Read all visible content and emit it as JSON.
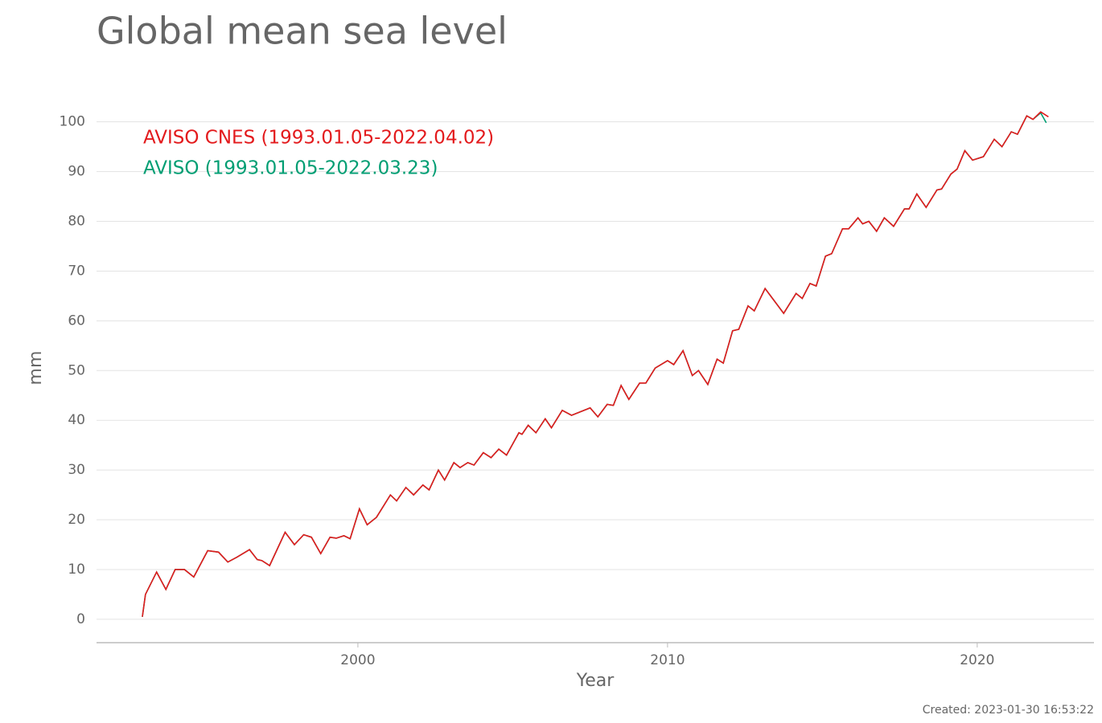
{
  "chart_data": {
    "type": "line",
    "title": "Global mean sea level",
    "x_label": "Year",
    "y_label": "mm",
    "note": "Created: 2023-01-30 16:53:22",
    "xlim": [
      1991.56,
      2023.77
    ],
    "ylim": [
      -4.7,
      103.5
    ],
    "xticks": [
      2000,
      2010,
      2020
    ],
    "yticks": [
      0,
      10,
      20,
      30,
      40,
      50,
      60,
      70,
      80,
      90,
      100
    ],
    "grid": true,
    "legend": "upper left",
    "series": [
      {
        "name": "AVISO (1993.01.05-2022.03.23)",
        "color": "#009e73",
        "x": [
          1993.04,
          1993.14,
          1993.5,
          1993.8,
          1994.1,
          1994.4,
          1994.7,
          1995.15,
          1995.5,
          1995.8,
          1996.1,
          1996.5,
          1996.75,
          1996.9,
          1997.15,
          1997.65,
          1997.95,
          1998.25,
          1998.5,
          1998.8,
          1999.1,
          1999.3,
          1999.55,
          1999.75,
          2000.05,
          2000.3,
          2000.6,
          2001.05,
          2001.25,
          2001.55,
          2001.8,
          2002.1,
          2002.3,
          2002.6,
          2002.8,
          2003.1,
          2003.3,
          2003.55,
          2003.75,
          2004.05,
          2004.3,
          2004.55,
          2004.8,
          2005.2,
          2005.3,
          2005.5,
          2005.75,
          2006.05,
          2006.25,
          2006.6,
          2006.9,
          2007.5,
          2007.75,
          2008.05,
          2008.25,
          2008.5,
          2008.75,
          2009.1,
          2009.3,
          2009.6,
          2010.0,
          2010.2,
          2010.5,
          2010.8,
          2011.0,
          2011.3,
          2011.6,
          2011.8,
          2012.1,
          2012.3,
          2012.6,
          2012.8,
          2013.15,
          2013.45,
          2013.75,
          2014.15,
          2014.35,
          2014.6,
          2014.8,
          2015.1,
          2015.3,
          2015.65,
          2015.85,
          2016.15,
          2016.3,
          2016.5,
          2016.75,
          2017.0,
          2017.3,
          2017.65,
          2017.8,
          2018.05,
          2018.35,
          2018.7,
          2018.85,
          2019.15,
          2019.35,
          2019.6,
          2019.85,
          2020.2,
          2020.55,
          2020.8,
          2021.1,
          2021.3,
          2021.6,
          2021.8,
          2022.05,
          2022.23
        ],
        "values": [
          0.5,
          5,
          9.5,
          6,
          10,
          10,
          8.5,
          13.8,
          13.5,
          11.5,
          12.5,
          14,
          12,
          11.8,
          10.8,
          17.5,
          15,
          17,
          16.5,
          13.2,
          16.5,
          16.3,
          16.8,
          16.2,
          22.2,
          19,
          20.5,
          25,
          23.8,
          26.5,
          25,
          27,
          26,
          30,
          28,
          31.5,
          30.5,
          31.5,
          31,
          33.5,
          32.5,
          34.2,
          33,
          37.5,
          37.2,
          39,
          37.5,
          40.3,
          38.5,
          42,
          41,
          42.5,
          40.7,
          43.2,
          43,
          47,
          44.2,
          47.5,
          47.5,
          50.5,
          52,
          51.2,
          54,
          49,
          50,
          47.2,
          52.3,
          51.5,
          58,
          58.3,
          63,
          62,
          66.5,
          64,
          61.5,
          65.5,
          64.5,
          67.5,
          67,
          73,
          73.5,
          78.5,
          78.5,
          80.7,
          79.5,
          80,
          78,
          80.7,
          79,
          82.5,
          82.5,
          85.5,
          82.8,
          86.3,
          86.5,
          89.5,
          90.5,
          94.2,
          92.3,
          93,
          96.5,
          95,
          98,
          97.5,
          101.2,
          100.5,
          101.8,
          99.8
        ]
      },
      {
        "name": "AVISO CNES (1993.01.05-2022.04.02)",
        "color": "#e31a1c",
        "x": [
          1993.04,
          1993.14,
          1993.5,
          1993.8,
          1994.1,
          1994.4,
          1994.7,
          1995.15,
          1995.5,
          1995.8,
          1996.1,
          1996.5,
          1996.75,
          1996.9,
          1997.15,
          1997.65,
          1997.95,
          1998.25,
          1998.5,
          1998.8,
          1999.1,
          1999.3,
          1999.55,
          1999.75,
          2000.05,
          2000.3,
          2000.6,
          2001.05,
          2001.25,
          2001.55,
          2001.8,
          2002.1,
          2002.3,
          2002.6,
          2002.8,
          2003.1,
          2003.3,
          2003.55,
          2003.75,
          2004.05,
          2004.3,
          2004.55,
          2004.8,
          2005.2,
          2005.3,
          2005.5,
          2005.75,
          2006.05,
          2006.25,
          2006.6,
          2006.9,
          2007.5,
          2007.75,
          2008.05,
          2008.25,
          2008.5,
          2008.75,
          2009.1,
          2009.3,
          2009.6,
          2010.0,
          2010.2,
          2010.5,
          2010.8,
          2011.0,
          2011.3,
          2011.6,
          2011.8,
          2012.1,
          2012.3,
          2012.6,
          2012.8,
          2013.15,
          2013.45,
          2013.75,
          2014.15,
          2014.35,
          2014.6,
          2014.8,
          2015.1,
          2015.3,
          2015.65,
          2015.85,
          2016.15,
          2016.3,
          2016.5,
          2016.75,
          2017.0,
          2017.3,
          2017.65,
          2017.8,
          2018.05,
          2018.35,
          2018.7,
          2018.85,
          2019.15,
          2019.35,
          2019.6,
          2019.85,
          2020.2,
          2020.55,
          2020.8,
          2021.1,
          2021.3,
          2021.6,
          2021.8,
          2022.05,
          2022.3
        ],
        "values": [
          0.5,
          5,
          9.5,
          6,
          10,
          10,
          8.5,
          13.8,
          13.5,
          11.5,
          12.5,
          14,
          12,
          11.8,
          10.8,
          17.5,
          15,
          17,
          16.5,
          13.2,
          16.5,
          16.3,
          16.8,
          16.2,
          22.2,
          19,
          20.5,
          25,
          23.8,
          26.5,
          25,
          27,
          26,
          30,
          28,
          31.5,
          30.5,
          31.5,
          31,
          33.5,
          32.5,
          34.2,
          33,
          37.5,
          37.2,
          39,
          37.5,
          40.3,
          38.5,
          42,
          41,
          42.5,
          40.7,
          43.2,
          43,
          47,
          44.2,
          47.5,
          47.5,
          50.5,
          52,
          51.2,
          54,
          49,
          50,
          47.2,
          52.3,
          51.5,
          58,
          58.3,
          63,
          62,
          66.5,
          64,
          61.5,
          65.5,
          64.5,
          67.5,
          67,
          73,
          73.5,
          78.5,
          78.5,
          80.7,
          79.5,
          80,
          78,
          80.7,
          79,
          82.5,
          82.5,
          85.5,
          82.8,
          86.3,
          86.5,
          89.5,
          90.5,
          94.2,
          92.3,
          93,
          96.5,
          95,
          98,
          97.5,
          101.2,
          100.5,
          102,
          101
        ]
      }
    ]
  }
}
